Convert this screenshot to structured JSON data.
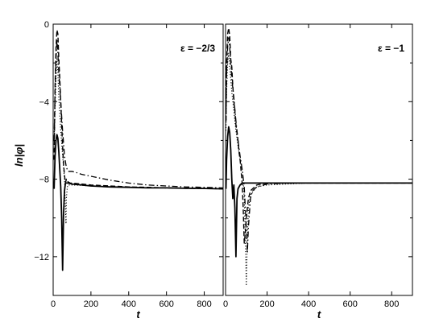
{
  "chart_data": [
    {
      "type": "line",
      "annotation": "ε = −2/3",
      "xlabel": "t",
      "ylabel": "ln|φ|",
      "xlim": [
        0,
        900
      ],
      "ylim": [
        -14,
        0
      ],
      "xticks": [
        0,
        200,
        400,
        600,
        800
      ],
      "yticks": [
        0,
        -4,
        -8,
        -12
      ],
      "tick_labels_y": [
        "0",
        "−4",
        "−8",
        "−12"
      ],
      "tick_labels_x": [
        "0",
        "200",
        "400",
        "600",
        "800"
      ],
      "grid": false,
      "series": [
        {
          "style": "solid",
          "x": [
            5,
            10,
            15,
            20,
            25,
            30,
            35,
            40,
            45,
            50,
            55,
            60,
            65,
            70,
            80,
            100,
            150,
            200,
            300,
            400,
            500,
            600,
            700,
            800,
            900
          ],
          "y": [
            -8.5,
            -6.8,
            -6.0,
            -5.7,
            -5.9,
            -6.6,
            -7.5,
            -8.4,
            -10.0,
            -12.7,
            -9.8,
            -8.6,
            -8.2,
            -8.2,
            -8.2,
            -8.25,
            -8.3,
            -8.35,
            -8.4,
            -8.42,
            -8.45,
            -8.45,
            -8.47,
            -8.48,
            -8.5
          ]
        },
        {
          "style": "dashed",
          "x": [
            5,
            10,
            15,
            20,
            25,
            30,
            35,
            40,
            45,
            50,
            55,
            60,
            65,
            70,
            75,
            80,
            90,
            100,
            150,
            200,
            300,
            400,
            500,
            600,
            700,
            800,
            900
          ],
          "y": [
            -7.0,
            -3.2,
            -1.2,
            -0.3,
            -0.5,
            -1.8,
            -2.8,
            -4.0,
            -5.2,
            -6.3,
            -7.2,
            -7.8,
            -8.2,
            -8.0,
            -8.1,
            -8.15,
            -8.2,
            -8.2,
            -8.25,
            -8.3,
            -8.35,
            -8.4,
            -8.42,
            -8.45,
            -8.47,
            -8.48,
            -8.5
          ]
        },
        {
          "style": "dash-dot",
          "x": [
            5,
            10,
            15,
            20,
            25,
            30,
            40,
            50,
            60,
            70,
            80,
            90,
            100,
            120,
            150,
            200,
            300,
            400,
            500,
            600,
            700,
            800,
            900
          ],
          "y": [
            -6.0,
            -3.5,
            -1.8,
            -0.8,
            -1.5,
            -2.5,
            -4.0,
            -5.5,
            -6.8,
            -7.4,
            -7.6,
            -7.6,
            -7.6,
            -7.65,
            -7.75,
            -7.85,
            -8.05,
            -8.2,
            -8.3,
            -8.35,
            -8.4,
            -8.42,
            -8.45
          ]
        },
        {
          "style": "dotted",
          "x": [
            5,
            10,
            15,
            20,
            25,
            30,
            40,
            50,
            60,
            65,
            68,
            70,
            75,
            80,
            100,
            150,
            200,
            300,
            400,
            500,
            600,
            700,
            800,
            900
          ],
          "y": [
            -6.5,
            -4.5,
            -2.8,
            -1.8,
            -2.5,
            -3.8,
            -5.5,
            -6.8,
            -8.0,
            -9.5,
            -10.3,
            -9.0,
            -8.4,
            -8.3,
            -8.3,
            -8.32,
            -8.35,
            -8.4,
            -8.42,
            -8.45,
            -8.45,
            -8.47,
            -8.48,
            -8.5
          ]
        }
      ]
    },
    {
      "type": "line",
      "annotation": "ε = −1",
      "xlabel": "t",
      "ylabel": "",
      "xlim": [
        0,
        900
      ],
      "ylim": [
        -14,
        0
      ],
      "xticks": [
        0,
        200,
        400,
        600,
        800
      ],
      "yticks": [
        0,
        -4,
        -8,
        -12
      ],
      "tick_labels_y": [
        "",
        "",
        "",
        ""
      ],
      "tick_labels_x": [
        "0",
        "200",
        "400",
        "600",
        "800"
      ],
      "grid": false,
      "series": [
        {
          "style": "solid",
          "x": [
            2,
            5,
            10,
            15,
            20,
            25,
            30,
            35,
            40,
            45,
            50,
            55,
            60,
            70,
            80,
            100,
            150,
            200,
            300,
            400,
            500,
            600,
            700,
            800,
            900
          ],
          "y": [
            -8.5,
            -7.0,
            -5.8,
            -5.3,
            -5.6,
            -6.5,
            -8.0,
            -9.0,
            -8.3,
            -9.5,
            -12.0,
            -9.0,
            -8.5,
            -8.3,
            -8.2,
            -8.2,
            -8.2,
            -8.2,
            -8.2,
            -8.2,
            -8.2,
            -8.2,
            -8.2,
            -8.2,
            -8.2
          ]
        },
        {
          "style": "dashed",
          "x": [
            2,
            5,
            10,
            15,
            20,
            25,
            30,
            35,
            40,
            45,
            50,
            55,
            60,
            65,
            70,
            75,
            80,
            85,
            90,
            95,
            100,
            110,
            120,
            150,
            200,
            300,
            400,
            500,
            600,
            700,
            800,
            900
          ],
          "y": [
            -5.0,
            -2.0,
            -0.5,
            -0.2,
            -0.6,
            -1.8,
            -2.2,
            -3.2,
            -4.0,
            -4.5,
            -5.2,
            -5.6,
            -6.0,
            -6.6,
            -7.0,
            -7.6,
            -8.2,
            -9.5,
            -11.3,
            -10.8,
            -10.0,
            -9.0,
            -8.6,
            -8.3,
            -8.2,
            -8.2,
            -8.2,
            -8.2,
            -8.2,
            -8.2,
            -8.2,
            -8.2
          ]
        },
        {
          "style": "dash-dot",
          "x": [
            2,
            5,
            10,
            15,
            20,
            25,
            30,
            40,
            50,
            60,
            70,
            80,
            90,
            100,
            105,
            110,
            120,
            130,
            150,
            200,
            300,
            400,
            500,
            600,
            700,
            800,
            900
          ],
          "y": [
            -5.0,
            -2.5,
            -1.2,
            -0.7,
            -1.2,
            -2.0,
            -2.8,
            -3.8,
            -5.0,
            -6.0,
            -6.8,
            -7.5,
            -8.4,
            -10.5,
            -11.8,
            -10.5,
            -9.0,
            -8.6,
            -8.4,
            -8.25,
            -8.2,
            -8.2,
            -8.2,
            -8.2,
            -8.2,
            -8.2,
            -8.2
          ]
        },
        {
          "style": "dotted",
          "x": [
            2,
            5,
            10,
            15,
            20,
            25,
            30,
            40,
            50,
            60,
            70,
            80,
            85,
            90,
            95,
            100,
            105,
            110,
            120,
            150,
            200,
            300,
            400,
            500,
            600,
            700,
            800,
            900
          ],
          "y": [
            -5.5,
            -3.5,
            -2.0,
            -1.5,
            -2.2,
            -2.8,
            -3.5,
            -4.5,
            -5.5,
            -6.3,
            -7.0,
            -7.5,
            -8.0,
            -9.0,
            -11.0,
            -13.5,
            -11.0,
            -9.5,
            -8.8,
            -8.4,
            -8.3,
            -8.25,
            -8.2,
            -8.2,
            -8.2,
            -8.2,
            -8.2,
            -8.2
          ]
        }
      ]
    }
  ]
}
